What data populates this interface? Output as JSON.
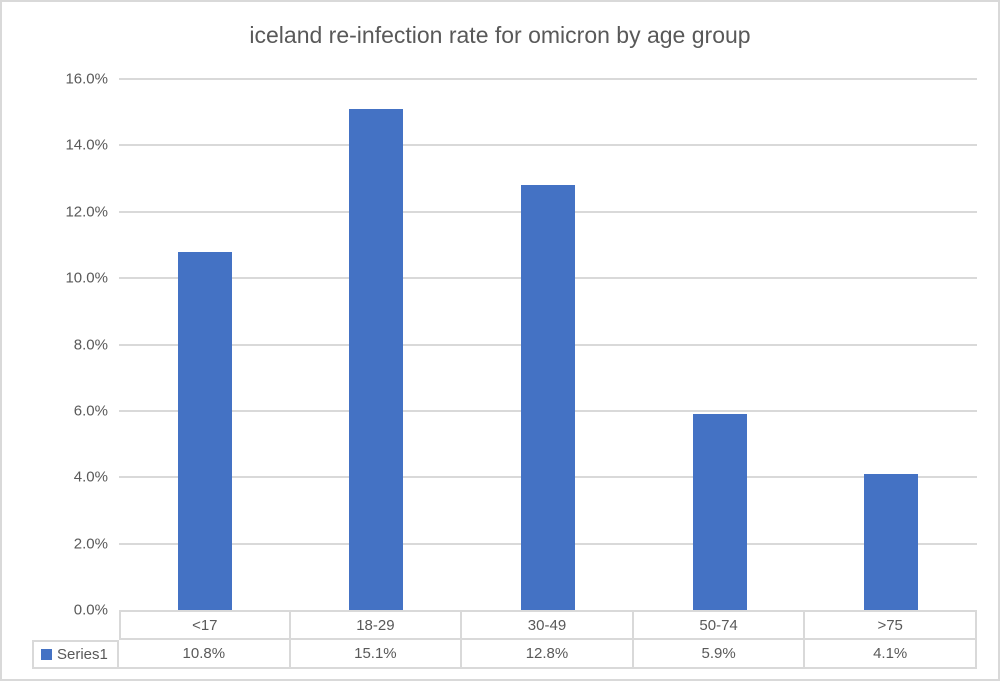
{
  "chart_data": {
    "type": "bar",
    "title": "iceland re-infection rate for omicron by age group",
    "categories": [
      "<17",
      "18-29",
      "30-49",
      "50-74",
      ">75"
    ],
    "series": [
      {
        "name": "Series1",
        "values": [
          10.8,
          15.1,
          12.8,
          5.9,
          4.1
        ]
      }
    ],
    "values_display": [
      "10.8%",
      "15.1%",
      "12.8%",
      "5.9%",
      "4.1%"
    ],
    "xlabel": "",
    "ylabel": "",
    "y_axis": {
      "min": 0,
      "max": 16,
      "tick_step": 2,
      "ticks": [
        0,
        2,
        4,
        6,
        8,
        10,
        12,
        14,
        16
      ],
      "tick_labels": [
        "0.0%",
        "2.0%",
        "4.0%",
        "6.0%",
        "8.0%",
        "10.0%",
        "12.0%",
        "14.0%",
        "16.0%"
      ],
      "unit": "%"
    },
    "grid": true,
    "legend": {
      "position": "data-table-left",
      "entries": [
        "Series1"
      ]
    },
    "data_table_shown": true,
    "colors": {
      "bar": "#4472C4",
      "gridline": "#D9D9D9",
      "border": "#D9D9D9",
      "text": "#595959"
    }
  }
}
